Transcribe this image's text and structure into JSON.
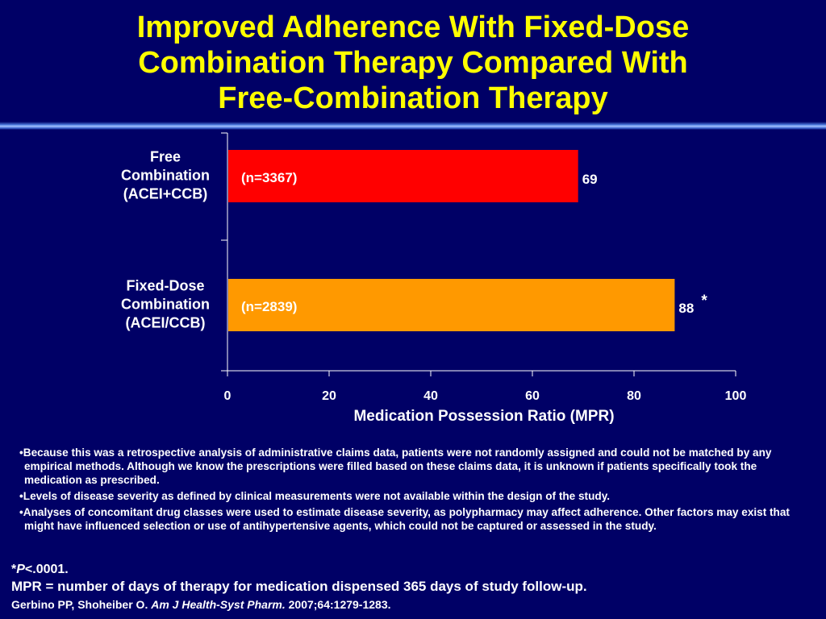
{
  "title": {
    "line1": "Improved Adherence With Fixed-Dose",
    "line2": "Combination Therapy Compared With",
    "line3": "Free-Combination Therapy"
  },
  "colors": {
    "background": "#000066",
    "title": "#ffff00",
    "free_bar": "#ff0000",
    "fixed_bar": "#ff9900",
    "text": "#ffffff"
  },
  "chart_data": {
    "type": "bar",
    "orientation": "horizontal",
    "categories": [
      {
        "lines": [
          "Free",
          "Combination",
          "(ACEI+CCB)"
        ],
        "n_label": "(n=3367)",
        "value": 69,
        "value_label": "69",
        "marker": "",
        "color": "#ff0000"
      },
      {
        "lines": [
          "Fixed-Dose",
          "Combination",
          "(ACEI/CCB)"
        ],
        "n_label": "(n=2839)",
        "value": 88,
        "value_label": "88",
        "marker": "*",
        "color": "#ff9900"
      }
    ],
    "xlabel": "Medication Possession Ratio (MPR)",
    "xlim": [
      0,
      100
    ],
    "xticks": [
      0,
      20,
      40,
      60,
      80,
      100
    ],
    "grid": false,
    "legend": "none"
  },
  "notes": [
    "•Because this was a retrospective analysis of administrative claims data, patients were not randomly assigned and could not be matched by any empirical methods. Although we know the prescriptions were filled based on these claims data, it is unknown if patients specifically took the medication as prescribed.",
    "•Levels of disease severity as defined by clinical measurements were not available within the design of the study.",
    "•Analyses of concomitant drug classes were used to estimate disease severity, as polypharmacy may affect adherence. Other factors may exist that might have influenced selection or use of antihypertensive agents, which could not be captured or assessed in the study."
  ],
  "footer": {
    "p_star": "*",
    "p_italic": "P",
    "p_rest": "<.0001.",
    "mpr_def": "MPR = number of days of therapy for medication dispensed 365 days of study follow-up.",
    "cite_authors": "Gerbino PP, Shoheiber O. ",
    "cite_journal": "Am J Health-Syst Pharm.",
    "cite_rest": " 2007;64:1279-1283."
  }
}
